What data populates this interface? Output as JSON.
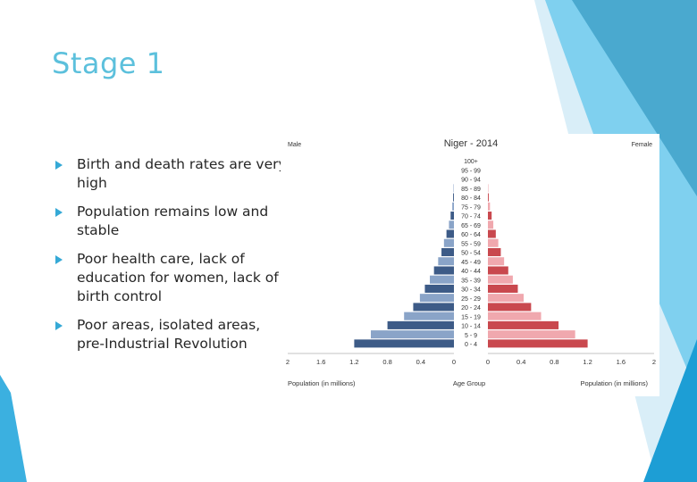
{
  "slide": {
    "title": "Stage 1",
    "accent_color": "#5cc0dc",
    "bullet_color": "#35a9d6",
    "bullets": [
      "Birth and death rates are very high",
      "Population remains low and stable",
      "Poor health care, lack of education for women, lack of birth control",
      "Poor areas, isolated areas, pre-Industrial Revolution"
    ]
  },
  "chart_data": {
    "type": "bar",
    "title": "Niger - 2014",
    "left_label": "Male",
    "right_label": "Female",
    "xlabel_left": "Population (in millions)",
    "xlabel_center": "Age Group",
    "xlabel_right": "Population (in millions)",
    "ticks_left": [
      "2",
      "1.6",
      "1.2",
      "0.8",
      "0.4",
      "0"
    ],
    "ticks_right": [
      "0",
      "0.4",
      "0.8",
      "1.2",
      "1.6",
      "2"
    ],
    "xlim": [
      0,
      2
    ],
    "categories": [
      "100+",
      "95 - 99",
      "90 - 94",
      "85 - 89",
      "80 - 84",
      "75 - 79",
      "70 - 74",
      "65 - 69",
      "60 - 64",
      "55 - 59",
      "50 - 54",
      "45 - 49",
      "40 - 44",
      "35 - 39",
      "30 - 34",
      "25 - 29",
      "20 - 24",
      "15 - 19",
      "10 - 14",
      "5 - 9",
      "0 - 4"
    ],
    "series": [
      {
        "name": "Male",
        "color_dark": "#3d5b87",
        "color_light": "#8aa4c8",
        "values": [
          0,
          0,
          0,
          0.005,
          0.01,
          0.02,
          0.04,
          0.06,
          0.09,
          0.12,
          0.15,
          0.19,
          0.24,
          0.29,
          0.35,
          0.41,
          0.49,
          0.6,
          0.8,
          1.0,
          1.2
        ]
      },
      {
        "name": "Female",
        "color_dark": "#c9484e",
        "color_light": "#f0a8ae",
        "values": [
          0,
          0,
          0,
          0.005,
          0.01,
          0.025,
          0.045,
          0.065,
          0.095,
          0.125,
          0.155,
          0.195,
          0.245,
          0.3,
          0.36,
          0.43,
          0.52,
          0.64,
          0.85,
          1.05,
          1.2
        ]
      }
    ]
  }
}
